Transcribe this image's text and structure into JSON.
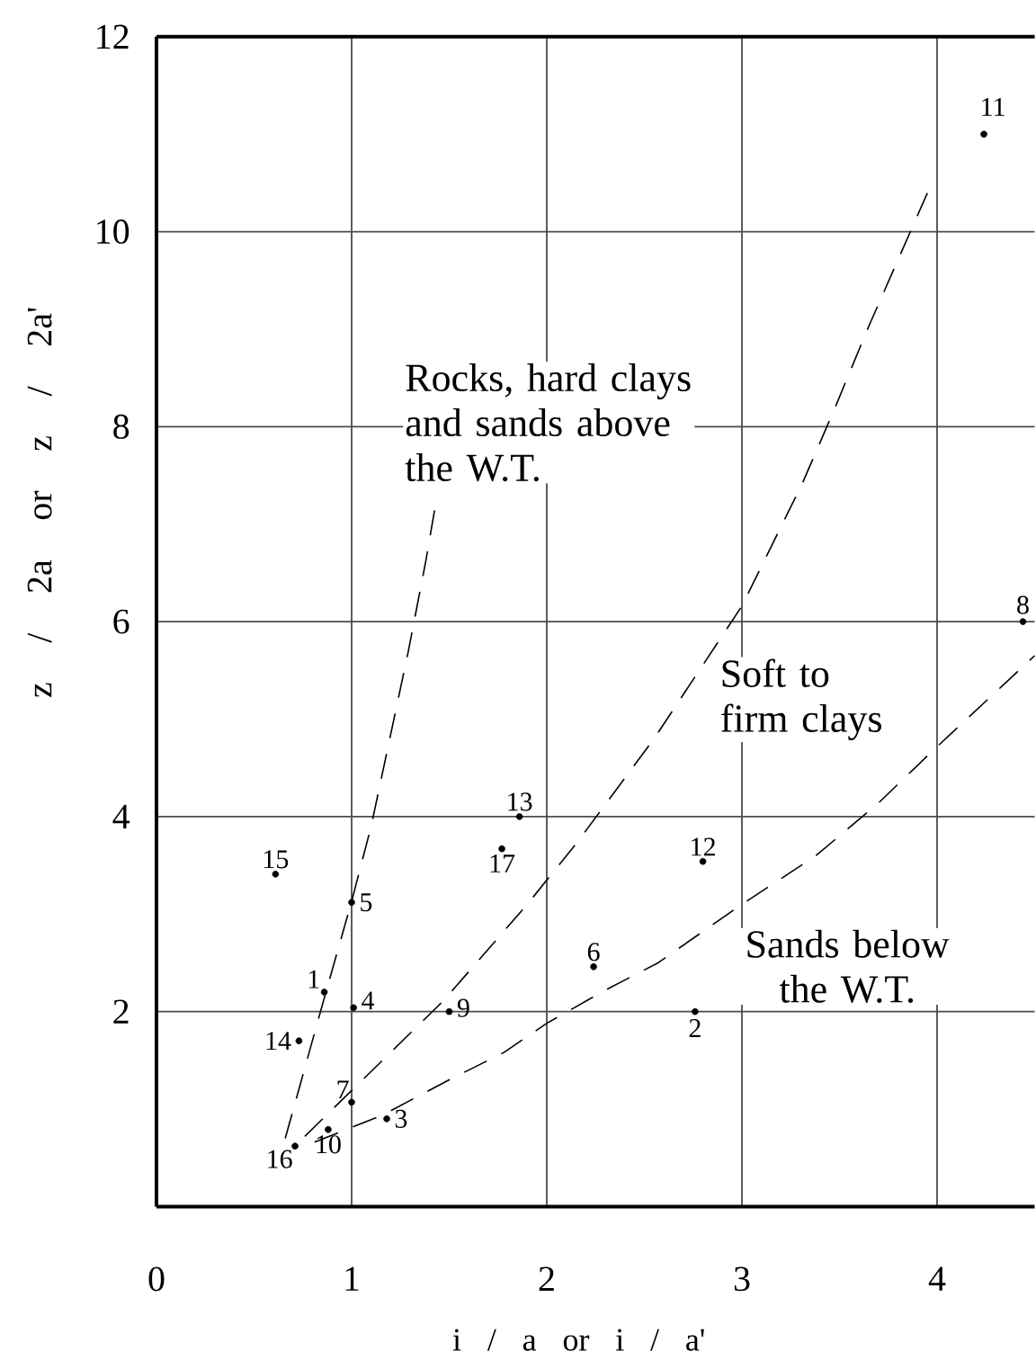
{
  "chart_data": {
    "type": "scatter",
    "xlabel": "i / a or i / a'",
    "ylabel": "z / 2a or z / 2a'",
    "xlim": [
      0,
      4.5
    ],
    "ylim": [
      0,
      12
    ],
    "xticks": [
      0,
      1,
      2,
      3,
      4
    ],
    "yticks": [
      2,
      4,
      6,
      8,
      10,
      12
    ],
    "grid": true,
    "marker": "circle",
    "series": [
      {
        "type": "scatter",
        "color": "#000000",
        "x": [
          0.86,
          2.76,
          1.18,
          1.01,
          1.0,
          2.24,
          1.0,
          4.44,
          1.5,
          0.88,
          4.24,
          2.8,
          1.86,
          0.73,
          0.61,
          0.71,
          1.77
        ],
        "values": [
          2.2,
          2.0,
          0.9,
          2.04,
          3.12,
          2.46,
          1.07,
          6.0,
          2.0,
          0.79,
          11.0,
          3.54,
          4.0,
          1.7,
          3.41,
          0.62,
          3.67
        ]
      },
      {
        "type": "line",
        "name": "Rocks, hard clays and sands above the W.T.",
        "color": "#000000",
        "line_style": "dashed",
        "marker": "none",
        "x": [
          0.66,
          0.86,
          1.0,
          1.1,
          1.29,
          1.38,
          1.43
        ],
        "values": [
          0.7,
          2.14,
          3.13,
          3.9,
          5.69,
          6.62,
          7.2
        ]
      },
      {
        "type": "line",
        "name": "Soft to firm clays",
        "color": "#000000",
        "line_style": "dashed",
        "marker": "none",
        "x": [
          0.76,
          1.0,
          1.47,
          1.9,
          2.15,
          2.55,
          3.0,
          3.31,
          3.47,
          3.65,
          3.96
        ],
        "values": [
          0.72,
          1.19,
          2.11,
          3.1,
          3.72,
          4.8,
          6.16,
          7.42,
          8.16,
          9.03,
          10.44
        ]
      },
      {
        "type": "line",
        "name": "Sands below the W.T.",
        "color": "#000000",
        "line_style": "dashed",
        "marker": "none",
        "x": [
          0.81,
          1.16,
          1.5,
          1.78,
          2.0,
          2.3,
          2.57,
          3.0,
          3.38,
          3.7,
          3.98,
          4.5
        ],
        "values": [
          0.66,
          0.94,
          1.3,
          1.58,
          1.88,
          2.22,
          2.5,
          3.1,
          3.6,
          4.14,
          4.68,
          5.65
        ]
      }
    ],
    "annotations": [
      {
        "text": "1",
        "x": 0.86,
        "y": 2.2
      },
      {
        "text": "2",
        "x": 2.76,
        "y": 2.0
      },
      {
        "text": "3",
        "x": 1.18,
        "y": 0.9
      },
      {
        "text": "4",
        "x": 1.01,
        "y": 2.04
      },
      {
        "text": "5",
        "x": 1.0,
        "y": 3.12
      },
      {
        "text": "6",
        "x": 2.24,
        "y": 2.46
      },
      {
        "text": "7",
        "x": 1.0,
        "y": 1.07
      },
      {
        "text": "8",
        "x": 4.44,
        "y": 6.0
      },
      {
        "text": "9",
        "x": 1.5,
        "y": 2.0
      },
      {
        "text": "10",
        "x": 0.88,
        "y": 0.79
      },
      {
        "text": "11",
        "x": 4.24,
        "y": 11.0
      },
      {
        "text": "12",
        "x": 2.8,
        "y": 3.54
      },
      {
        "text": "13",
        "x": 1.86,
        "y": 4.0
      },
      {
        "text": "14",
        "x": 0.73,
        "y": 1.7
      },
      {
        "text": "15",
        "x": 0.61,
        "y": 3.41
      },
      {
        "text": "16",
        "x": 0.71,
        "y": 0.62
      },
      {
        "text": "17",
        "x": 1.77,
        "y": 3.67
      }
    ]
  }
}
